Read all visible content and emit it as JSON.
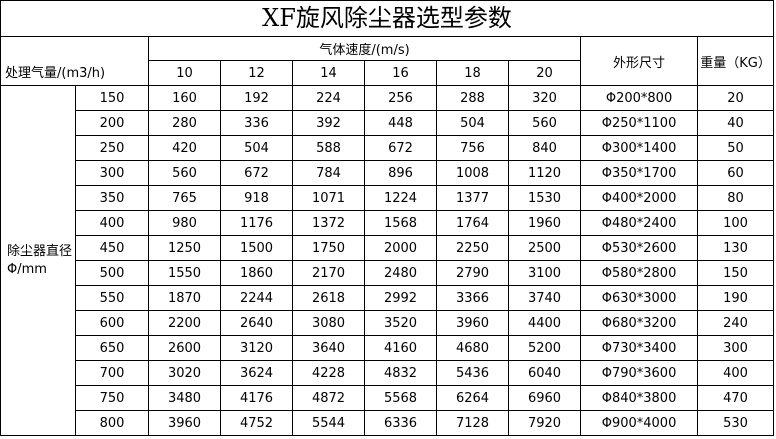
{
  "title": "XF旋风除尘器选型参数",
  "table": {
    "flow_label": "处理气量/(m3/h)",
    "speed_label": "气体速度/(m/s)",
    "speeds": [
      10,
      12,
      14,
      16,
      18,
      20
    ],
    "size_label": "外形尺寸",
    "weight_label": "重量（KG）",
    "diameter_label": "除尘器直径Φ/mm",
    "rows": [
      [
        150,
        160,
        192,
        224,
        256,
        288,
        320,
        "Φ200*800",
        20
      ],
      [
        200,
        280,
        336,
        392,
        448,
        504,
        560,
        "Φ250*1100",
        40
      ],
      [
        250,
        420,
        504,
        588,
        672,
        756,
        840,
        "Φ300*1400",
        50
      ],
      [
        300,
        560,
        672,
        784,
        896,
        1008,
        1120,
        "Φ350*1700",
        60
      ],
      [
        350,
        765,
        918,
        1071,
        1224,
        1377,
        1530,
        "Φ400*2000",
        80
      ],
      [
        400,
        980,
        1176,
        1372,
        1568,
        1764,
        1960,
        "Φ480*2400",
        100
      ],
      [
        450,
        1250,
        1500,
        1750,
        2000,
        2250,
        2500,
        "Φ530*2600",
        130
      ],
      [
        500,
        1550,
        1860,
        2170,
        2480,
        2790,
        3100,
        "Φ580*2800",
        150
      ],
      [
        550,
        1870,
        2244,
        2618,
        2992,
        3366,
        3740,
        "Φ630*3000",
        190
      ],
      [
        600,
        2200,
        2640,
        3080,
        3520,
        3960,
        4400,
        "Φ680*3200",
        240
      ],
      [
        650,
        2600,
        3120,
        3640,
        4160,
        4680,
        5200,
        "Φ730*3400",
        300
      ],
      [
        700,
        3020,
        3624,
        4228,
        4832,
        5436,
        6040,
        "Φ790*3600",
        400
      ],
      [
        750,
        3480,
        4176,
        4872,
        5568,
        6264,
        6960,
        "Φ840*3800",
        470
      ],
      [
        800,
        3960,
        4752,
        5544,
        6336,
        7128,
        7920,
        "Φ900*4000",
        530
      ]
    ]
  }
}
